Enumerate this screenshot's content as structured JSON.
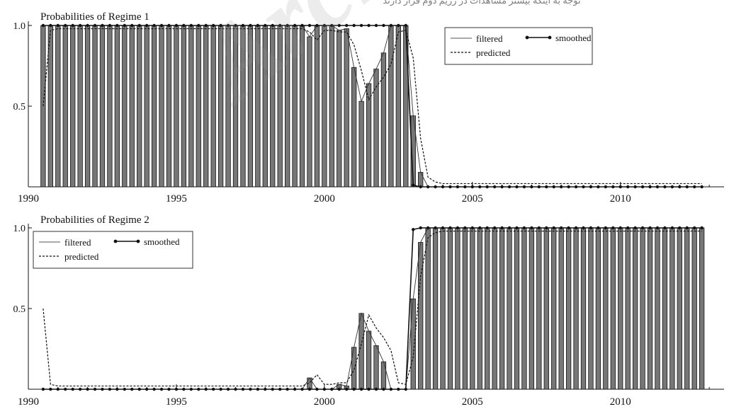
{
  "watermark": "Archive of SID",
  "header_text": "توجه به اینکه بیشتر مشاهدات در رژیم دوم قرار دارند",
  "chart_data": [
    {
      "type": "bar",
      "title": "Probabilities of Regime 1",
      "xlim": [
        1990,
        2013.5
      ],
      "ylim": [
        0,
        1
      ],
      "xticks": [
        "1990",
        "1995",
        "2000",
        "2005",
        "2010"
      ],
      "yticks": [
        "0.5",
        "1.0"
      ],
      "legend_position": "top-right",
      "legend": {
        "filtered": "filtered",
        "smoothed": "smoothed",
        "predicted": "predicted"
      },
      "grid": false,
      "x": [
        1990.5,
        1990.75,
        1991.0,
        1991.25,
        1991.5,
        1991.75,
        1992.0,
        1992.25,
        1992.5,
        1992.75,
        1993.0,
        1993.25,
        1993.5,
        1993.75,
        1994.0,
        1994.25,
        1994.5,
        1994.75,
        1995.0,
        1995.25,
        1995.5,
        1995.75,
        1996.0,
        1996.25,
        1996.5,
        1996.75,
        1997.0,
        1997.25,
        1997.5,
        1997.75,
        1998.0,
        1998.25,
        1998.5,
        1998.75,
        1999.0,
        1999.25,
        1999.5,
        1999.75,
        2000.0,
        2000.25,
        2000.5,
        2000.75,
        2001.0,
        2001.25,
        2001.5,
        2001.75,
        2002.0,
        2002.25,
        2002.5,
        2002.75,
        2003.0,
        2003.25,
        2003.5,
        2003.75,
        2004.0,
        2004.25,
        2004.5,
        2004.75,
        2005.0,
        2005.25,
        2005.5,
        2005.75,
        2006.0,
        2006.25,
        2006.5,
        2006.75,
        2007.0,
        2007.25,
        2007.5,
        2007.75,
        2008.0,
        2008.25,
        2008.5,
        2008.75,
        2009.0,
        2009.25,
        2009.5,
        2009.75,
        2010.0,
        2010.25,
        2010.5,
        2010.75,
        2011.0,
        2011.25,
        2011.5,
        2011.75,
        2012.0,
        2012.25,
        2012.5,
        2012.75
      ],
      "filtered": [
        1,
        1,
        1,
        1,
        1,
        1,
        1,
        1,
        1,
        1,
        1,
        1,
        1,
        1,
        1,
        1,
        1,
        1,
        1,
        1,
        1,
        1,
        1,
        1,
        1,
        1,
        1,
        1,
        1,
        1,
        1,
        1,
        1,
        1,
        1,
        1,
        0.93,
        1,
        1,
        1,
        0.97,
        0.98,
        0.74,
        0.53,
        0.64,
        0.73,
        0.83,
        1,
        1,
        1,
        0.44,
        0.09,
        0,
        0,
        0,
        0,
        0,
        0,
        0,
        0,
        0,
        0,
        0,
        0,
        0,
        0,
        0,
        0,
        0,
        0,
        0,
        0,
        0,
        0,
        0,
        0,
        0,
        0,
        0,
        0,
        0,
        0,
        0,
        0,
        0,
        0,
        0,
        0,
        0,
        0
      ],
      "smoothed": [
        1,
        1,
        1,
        1,
        1,
        1,
        1,
        1,
        1,
        1,
        1,
        1,
        1,
        1,
        1,
        1,
        1,
        1,
        1,
        1,
        1,
        1,
        1,
        1,
        1,
        1,
        1,
        1,
        1,
        1,
        1,
        1,
        1,
        1,
        1,
        1,
        1,
        1,
        1,
        1,
        1,
        1,
        1,
        1,
        1,
        1,
        1,
        1,
        1,
        1,
        0.01,
        0,
        0,
        0,
        0,
        0,
        0,
        0,
        0,
        0,
        0,
        0,
        0,
        0,
        0,
        0,
        0,
        0,
        0,
        0,
        0,
        0,
        0,
        0,
        0,
        0,
        0,
        0,
        0,
        0,
        0,
        0,
        0,
        0,
        0,
        0,
        0,
        0,
        0,
        0
      ],
      "predicted": [
        0.5,
        0.97,
        0.98,
        0.98,
        0.98,
        0.98,
        0.98,
        0.98,
        0.98,
        0.98,
        0.98,
        0.98,
        0.98,
        0.98,
        0.98,
        0.98,
        0.98,
        0.98,
        0.98,
        0.98,
        0.98,
        0.98,
        0.98,
        0.98,
        0.98,
        0.98,
        0.98,
        0.98,
        0.98,
        0.98,
        0.98,
        0.98,
        0.98,
        0.98,
        0.98,
        0.98,
        0.96,
        0.91,
        0.97,
        0.97,
        0.96,
        0.96,
        0.88,
        0.72,
        0.54,
        0.62,
        0.68,
        0.76,
        0.96,
        0.97,
        0.8,
        0.3,
        0.06,
        0.03,
        0.02,
        0.02,
        0.02,
        0.02,
        0.02,
        0.02,
        0.02,
        0.02,
        0.02,
        0.02,
        0.02,
        0.02,
        0.02,
        0.02,
        0.02,
        0.02,
        0.02,
        0.02,
        0.02,
        0.02,
        0.02,
        0.02,
        0.02,
        0.02,
        0.02,
        0.02,
        0.02,
        0.02,
        0.02,
        0.02,
        0.02,
        0.02,
        0.02,
        0.02,
        0.02,
        0.02
      ]
    },
    {
      "type": "bar",
      "title": "Probabilities of Regime 2",
      "xlim": [
        1990,
        2013.5
      ],
      "ylim": [
        0,
        1
      ],
      "xticks": [
        "1990",
        "1995",
        "2000",
        "2005",
        "2010"
      ],
      "yticks": [
        "0.5",
        "1.0"
      ],
      "legend_position": "top-left",
      "legend": {
        "filtered": "filtered",
        "smoothed": "smoothed",
        "predicted": "predicted"
      },
      "grid": false,
      "x": [
        1990.5,
        1990.75,
        1991.0,
        1991.25,
        1991.5,
        1991.75,
        1992.0,
        1992.25,
        1992.5,
        1992.75,
        1993.0,
        1993.25,
        1993.5,
        1993.75,
        1994.0,
        1994.25,
        1994.5,
        1994.75,
        1995.0,
        1995.25,
        1995.5,
        1995.75,
        1996.0,
        1996.25,
        1996.5,
        1996.75,
        1997.0,
        1997.25,
        1997.5,
        1997.75,
        1998.0,
        1998.25,
        1998.5,
        1998.75,
        1999.0,
        1999.25,
        1999.5,
        1999.75,
        2000.0,
        2000.25,
        2000.5,
        2000.75,
        2001.0,
        2001.25,
        2001.5,
        2001.75,
        2002.0,
        2002.25,
        2002.5,
        2002.75,
        2003.0,
        2003.25,
        2003.5,
        2003.75,
        2004.0,
        2004.25,
        2004.5,
        2004.75,
        2005.0,
        2005.25,
        2005.5,
        2005.75,
        2006.0,
        2006.25,
        2006.5,
        2006.75,
        2007.0,
        2007.25,
        2007.5,
        2007.75,
        2008.0,
        2008.25,
        2008.5,
        2008.75,
        2009.0,
        2009.25,
        2009.5,
        2009.75,
        2010.0,
        2010.25,
        2010.5,
        2010.75,
        2011.0,
        2011.25,
        2011.5,
        2011.75,
        2012.0,
        2012.25,
        2012.5,
        2012.75
      ],
      "filtered": [
        0,
        0,
        0,
        0,
        0,
        0,
        0,
        0,
        0,
        0,
        0,
        0,
        0,
        0,
        0,
        0,
        0,
        0,
        0,
        0,
        0,
        0,
        0,
        0,
        0,
        0,
        0,
        0,
        0,
        0,
        0,
        0,
        0,
        0,
        0,
        0,
        0.07,
        0,
        0,
        0,
        0.03,
        0.02,
        0.26,
        0.47,
        0.36,
        0.27,
        0.17,
        0,
        0,
        0,
        0.56,
        0.91,
        1,
        1,
        1,
        1,
        1,
        1,
        1,
        1,
        1,
        1,
        1,
        1,
        1,
        1,
        1,
        1,
        1,
        1,
        1,
        1,
        1,
        1,
        1,
        1,
        1,
        1,
        1,
        1,
        1,
        1,
        1,
        1,
        1,
        1,
        1,
        1,
        1,
        1
      ],
      "smoothed": [
        0,
        0,
        0,
        0,
        0,
        0,
        0,
        0,
        0,
        0,
        0,
        0,
        0,
        0,
        0,
        0,
        0,
        0,
        0,
        0,
        0,
        0,
        0,
        0,
        0,
        0,
        0,
        0,
        0,
        0,
        0,
        0,
        0,
        0,
        0,
        0,
        0,
        0,
        0,
        0,
        0,
        0,
        0,
        0,
        0,
        0,
        0,
        0,
        0,
        0,
        0.99,
        1,
        1,
        1,
        1,
        1,
        1,
        1,
        1,
        1,
        1,
        1,
        1,
        1,
        1,
        1,
        1,
        1,
        1,
        1,
        1,
        1,
        1,
        1,
        1,
        1,
        1,
        1,
        1,
        1,
        1,
        1,
        1,
        1,
        1,
        1,
        1,
        1,
        1,
        1
      ],
      "predicted": [
        0.5,
        0.03,
        0.02,
        0.02,
        0.02,
        0.02,
        0.02,
        0.02,
        0.02,
        0.02,
        0.02,
        0.02,
        0.02,
        0.02,
        0.02,
        0.02,
        0.02,
        0.02,
        0.02,
        0.02,
        0.02,
        0.02,
        0.02,
        0.02,
        0.02,
        0.02,
        0.02,
        0.02,
        0.02,
        0.02,
        0.02,
        0.02,
        0.02,
        0.02,
        0.02,
        0.02,
        0.04,
        0.09,
        0.03,
        0.03,
        0.04,
        0.04,
        0.12,
        0.28,
        0.46,
        0.38,
        0.32,
        0.24,
        0.04,
        0.03,
        0.2,
        0.7,
        0.94,
        0.97,
        0.98,
        0.98,
        0.98,
        0.98,
        0.98,
        0.98,
        0.98,
        0.98,
        0.98,
        0.98,
        0.98,
        0.98,
        0.98,
        0.98,
        0.98,
        0.98,
        0.98,
        0.98,
        0.98,
        0.98,
        0.98,
        0.98,
        0.98,
        0.98,
        0.98,
        0.98,
        0.98,
        0.98,
        0.98,
        0.98,
        0.98,
        0.98,
        0.98,
        0.98,
        0.98,
        0.98
      ]
    }
  ]
}
